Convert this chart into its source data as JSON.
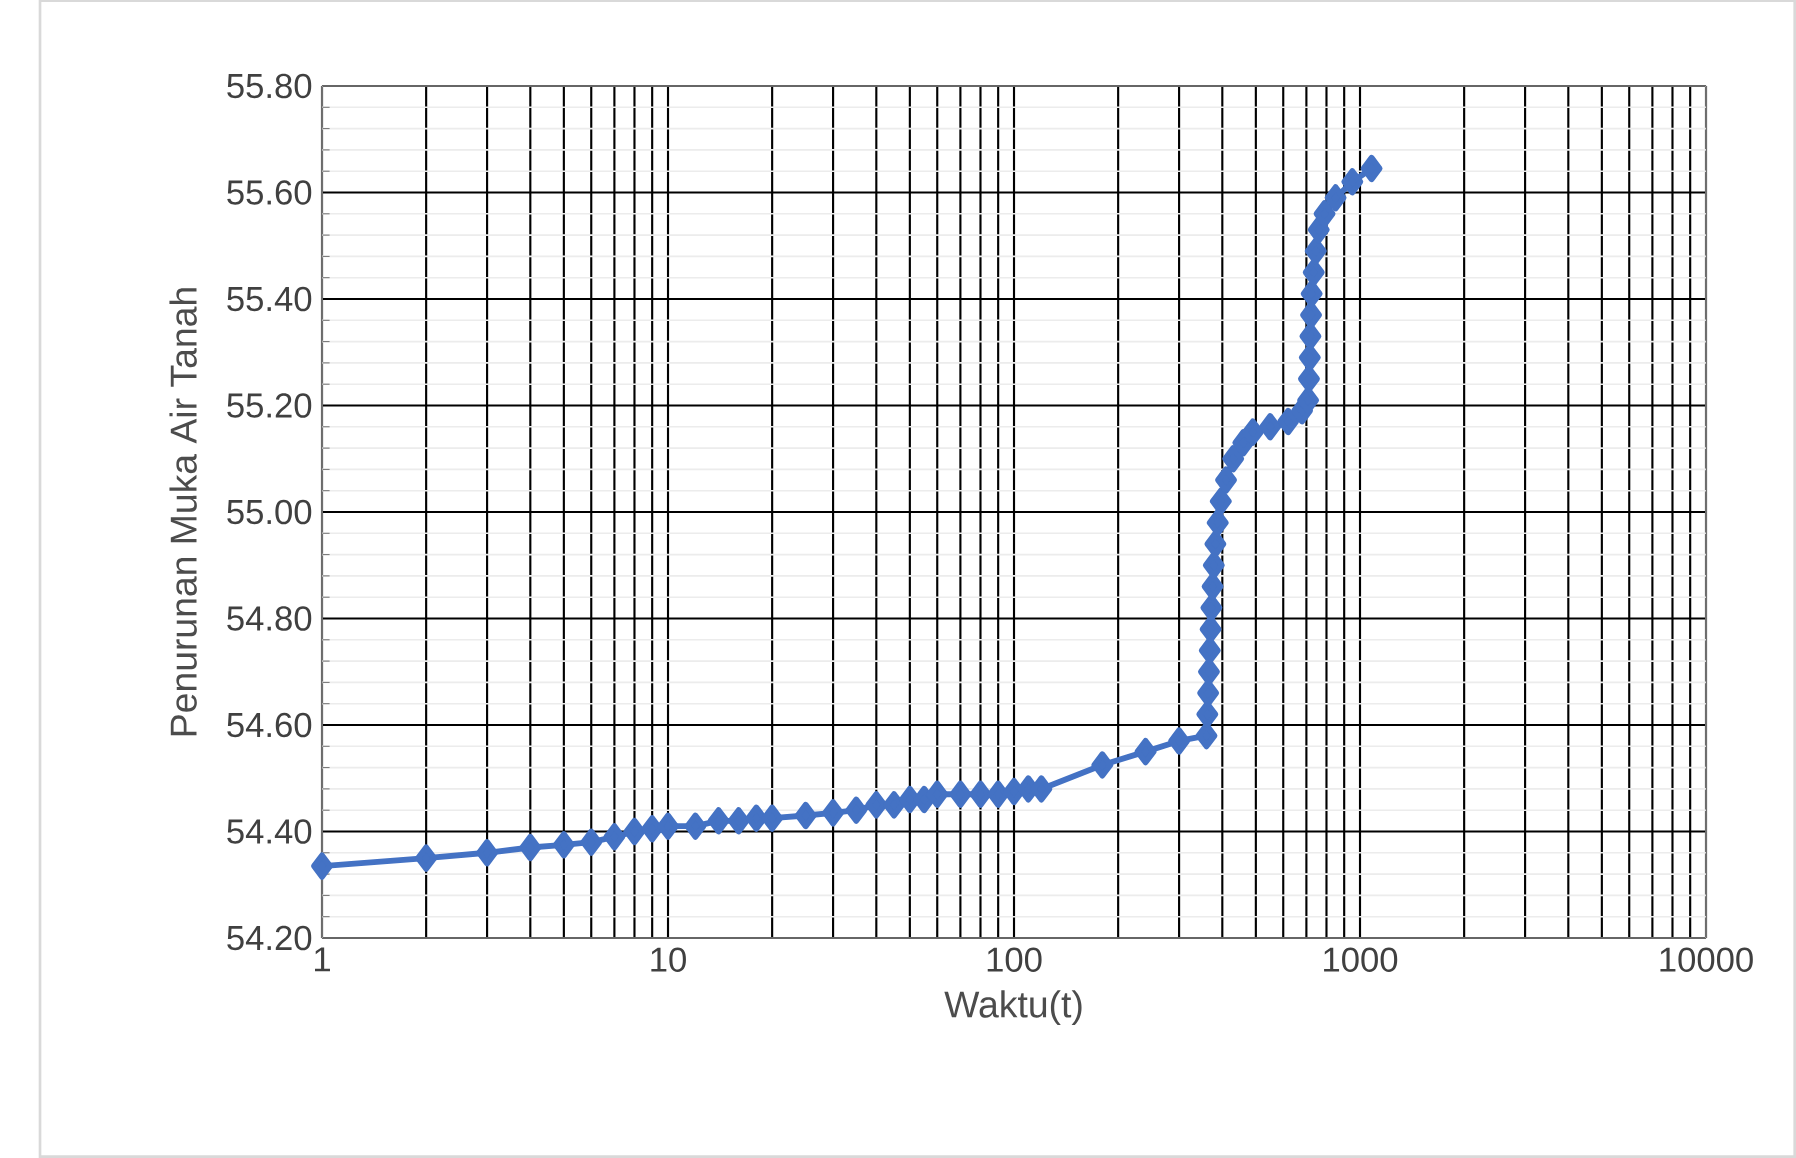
{
  "chart_data": {
    "type": "line",
    "xlabel": "Waktu(t)",
    "ylabel": "Penurunan Muka Air Tanah",
    "log": "x",
    "grid": true,
    "marker": "diamond",
    "line_style": "solid",
    "xlim": [
      1,
      10000
    ],
    "xticks": [
      1,
      10,
      100,
      1000,
      10000
    ],
    "ylim": [
      54.2,
      55.8
    ],
    "yticks": [
      {
        "value": 54.2,
        "label": "54.20"
      },
      {
        "value": 54.4,
        "label": "54.40"
      },
      {
        "value": 54.6,
        "label": "54.60"
      },
      {
        "value": 54.8,
        "label": "54.80"
      },
      {
        "value": 55.0,
        "label": "55.00"
      },
      {
        "value": 55.2,
        "label": "55.20"
      },
      {
        "value": 55.4,
        "label": "55.40"
      },
      {
        "value": 55.6,
        "label": "55.60"
      },
      {
        "value": 55.8,
        "label": "55.80"
      }
    ],
    "series": [
      {
        "color": "#4472c4",
        "x": [
          1,
          2,
          3,
          4,
          5,
          6,
          7,
          8,
          9,
          10,
          12,
          14,
          16,
          18,
          20,
          25,
          30,
          35,
          40,
          45,
          50,
          55,
          60,
          70,
          80,
          90,
          100,
          110,
          120,
          180,
          240,
          300,
          360,
          362,
          364,
          366,
          368,
          370,
          372,
          375,
          378,
          382,
          388,
          396,
          410,
          430,
          460,
          490,
          550,
          620,
          680,
          708,
          712,
          716,
          719,
          722,
          725,
          735,
          745,
          760,
          790,
          850,
          950,
          1080
        ],
        "values": [
          54.335,
          54.35,
          54.36,
          54.37,
          54.375,
          54.38,
          54.39,
          54.4,
          54.405,
          54.41,
          54.41,
          54.42,
          54.42,
          54.425,
          54.425,
          54.43,
          54.435,
          54.44,
          54.45,
          54.45,
          54.46,
          54.46,
          54.47,
          54.47,
          54.47,
          54.47,
          54.475,
          54.48,
          54.48,
          54.525,
          54.55,
          54.57,
          54.58,
          54.62,
          54.66,
          54.7,
          54.74,
          54.78,
          54.82,
          54.86,
          54.9,
          54.94,
          54.98,
          55.02,
          55.06,
          55.1,
          55.13,
          55.15,
          55.16,
          55.17,
          55.19,
          55.21,
          55.25,
          55.29,
          55.33,
          55.37,
          55.41,
          55.45,
          55.49,
          55.53,
          55.56,
          55.59,
          55.62,
          55.645
        ]
      }
    ]
  }
}
